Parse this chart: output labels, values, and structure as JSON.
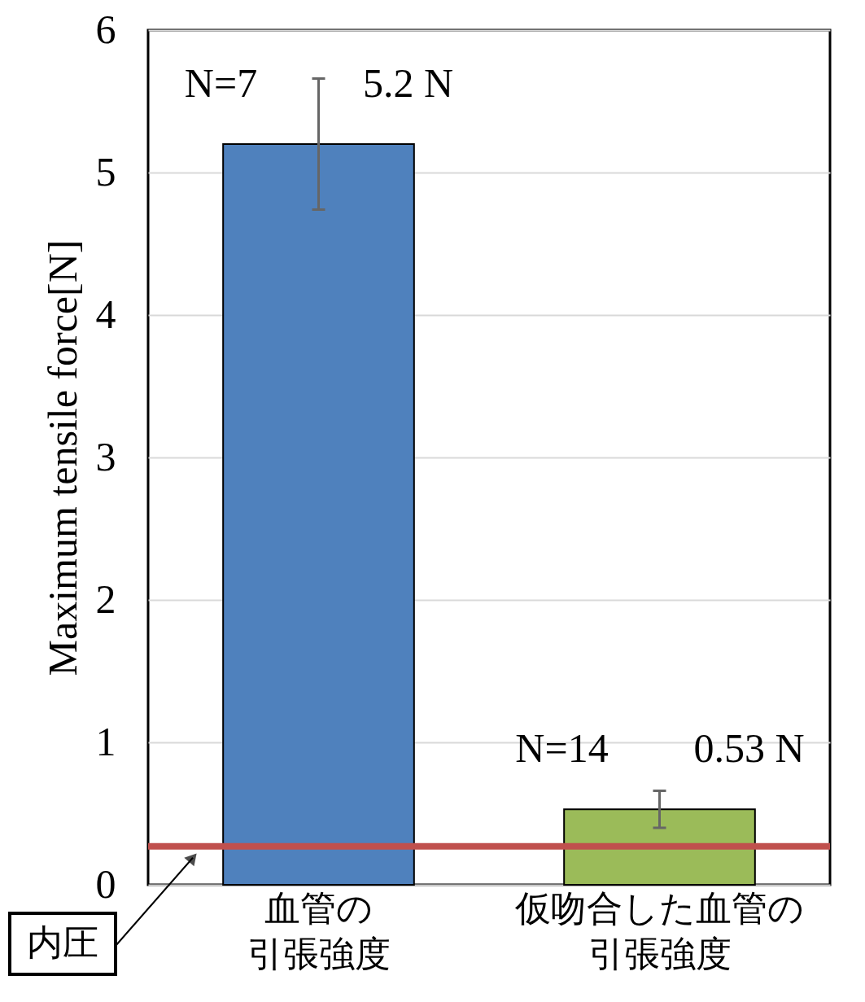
{
  "chart_data": {
    "type": "bar",
    "ylabel": "Maximum tensile force[N]",
    "categories": [
      "血管の引張強度",
      "仮吻合した血管の引張強度"
    ],
    "values": [
      5.2,
      0.53
    ],
    "colors": [
      "#4f81bd",
      "#9bbb59"
    ],
    "errors": [
      0.46,
      0.13
    ],
    "value_labels": [
      "5.2 N",
      "0.53 N"
    ],
    "annotations": [
      "N=7",
      "N=14"
    ],
    "ref_lines": [
      {
        "axis": "y",
        "value": 0.27,
        "label": "内圧",
        "color": "#c0504d"
      }
    ],
    "ylim": [
      0,
      6
    ],
    "yticks": [
      0,
      1,
      2,
      3,
      4,
      5,
      6
    ],
    "grid": "y"
  }
}
